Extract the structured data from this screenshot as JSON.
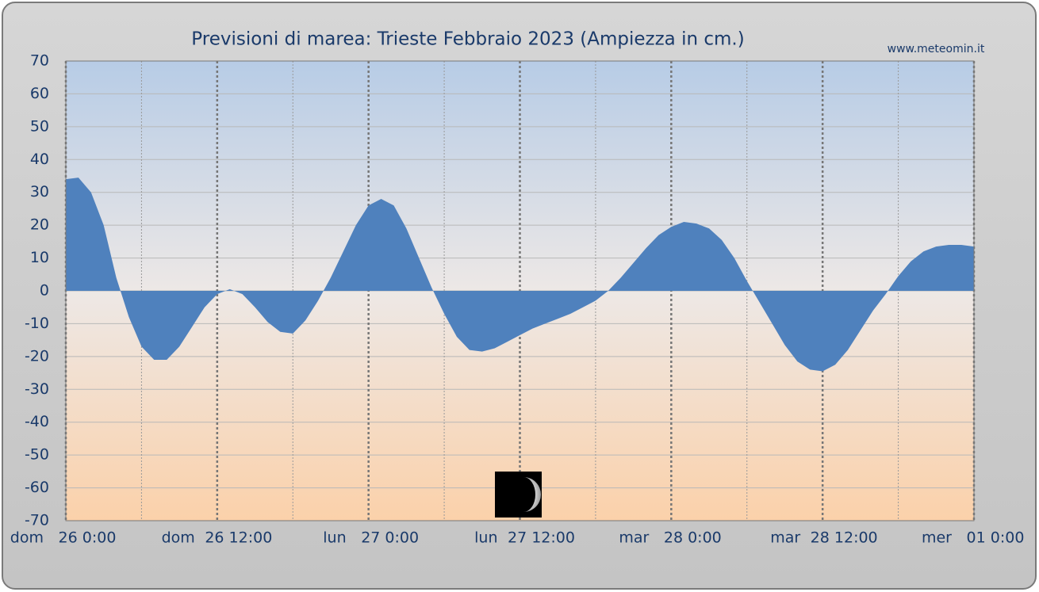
{
  "chart_data": {
    "type": "area",
    "title": "Previsioni di marea: Trieste Febbraio 2023 (Ampiezza in cm.)",
    "source": "www.meteomin.it",
    "color": "#4f81bd",
    "grid": true,
    "xlim": [
      0,
      72
    ],
    "ylim": [
      -70,
      70
    ],
    "yticks": [
      -70,
      -60,
      -50,
      -40,
      -30,
      -20,
      -10,
      0,
      10,
      20,
      30,
      40,
      50,
      60,
      70
    ],
    "xticks": [
      {
        "value": 0,
        "day": "dom",
        "label": "26 0:00"
      },
      {
        "value": 12,
        "day": "dom",
        "label": "26 12:00"
      },
      {
        "value": 24,
        "day": "lun",
        "label": "27 0:00"
      },
      {
        "value": 36,
        "day": "lun",
        "label": "27 12:00"
      },
      {
        "value": 48,
        "day": "mar",
        "label": "28 0:00"
      },
      {
        "value": 60,
        "day": "mar",
        "label": "28 12:00"
      },
      {
        "value": 72,
        "day": "mer",
        "label": "01 0:00"
      }
    ],
    "xgrid_minor": [
      6,
      18,
      30,
      42,
      54,
      66
    ],
    "x": [
      0,
      1,
      2,
      3,
      4,
      5,
      6,
      7,
      8,
      9,
      10,
      11,
      12,
      13,
      14,
      15,
      16,
      17,
      18,
      19,
      20,
      21,
      22,
      23,
      24,
      25,
      26,
      27,
      28,
      29,
      30,
      31,
      32,
      33,
      34,
      35,
      36,
      37,
      38,
      39,
      40,
      41,
      42,
      43,
      44,
      45,
      46,
      47,
      48,
      49,
      50,
      51,
      52,
      53,
      54,
      55,
      56,
      57,
      58,
      59,
      60,
      61,
      62,
      63,
      64,
      65,
      66,
      67,
      68,
      69,
      70,
      71,
      72
    ],
    "values": [
      34,
      34.5,
      30,
      20,
      4,
      -8,
      -17,
      -21,
      -21,
      -17,
      -11,
      -5,
      -1,
      0.5,
      -1,
      -5,
      -9.5,
      -12.5,
      -13,
      -9,
      -3,
      4,
      12,
      20,
      26,
      28,
      26,
      19,
      10,
      1,
      -7,
      -14,
      -18,
      -18.5,
      -17.5,
      -15.5,
      -13.5,
      -11.5,
      -10,
      -8.5,
      -7,
      -5,
      -3,
      0,
      4,
      8.5,
      13,
      17,
      19.5,
      21,
      20.5,
      19,
      15.5,
      10,
      3,
      -3.5,
      -10,
      -16.5,
      -21.5,
      -24,
      -24.5,
      -22.5,
      -18,
      -12,
      -6,
      -1,
      4.5,
      9,
      12,
      13.5,
      14,
      14,
      13.5
    ]
  }
}
